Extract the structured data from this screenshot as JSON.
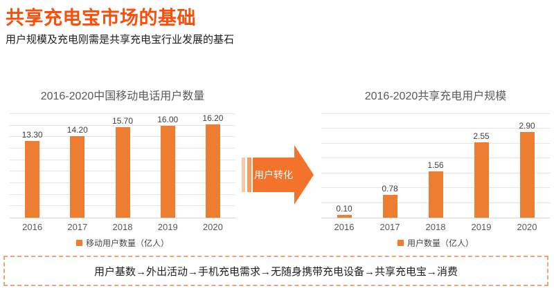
{
  "page": {
    "title": "共享充电宝市场的基础",
    "subtitle": "用户规模及充电刚需是共享充电宝行业发展的基石"
  },
  "arrow": {
    "label": "用户转化",
    "color": "#F4732B"
  },
  "footer": {
    "note": "用户基数→外出活动→手机充电需求→无随身携带充电设备→共享充电宝→消费"
  },
  "colors": {
    "accent_title": "#FB4E0B",
    "bar_orange": "#ED7D31",
    "gridline": "#E5E5E5",
    "axis_text": "#595959"
  },
  "chart_data": [
    {
      "type": "bar",
      "title": "2016-2020中国移动电话用户数量",
      "categories": [
        "2016",
        "2017",
        "2018",
        "2019",
        "2020"
      ],
      "values": [
        13.3,
        14.2,
        15.7,
        16.0,
        16.2
      ],
      "labels": [
        "13.30",
        "14.20",
        "15.70",
        "16.00",
        "16.20"
      ],
      "legend": "移动用户数量（亿人）",
      "xlabel": "",
      "ylabel": "",
      "ylim": [
        0,
        18
      ],
      "grid_step": 2,
      "grid": true,
      "legend_position": "bottom",
      "bar_color": "#ED7D31"
    },
    {
      "type": "bar",
      "title": "2016-2020共享充电用户规模",
      "categories": [
        "2016",
        "2017",
        "2018",
        "2019",
        "2020"
      ],
      "values": [
        0.1,
        0.78,
        1.56,
        2.55,
        2.9
      ],
      "labels": [
        "0.10",
        "0.78",
        "1.56",
        "2.55",
        "2.90"
      ],
      "legend": "用户数量（亿人）",
      "xlabel": "",
      "ylabel": "",
      "ylim": [
        0,
        3.5
      ],
      "grid_step": 0.5,
      "grid": true,
      "legend_position": "bottom",
      "bar_color": "#ED7D31"
    }
  ]
}
